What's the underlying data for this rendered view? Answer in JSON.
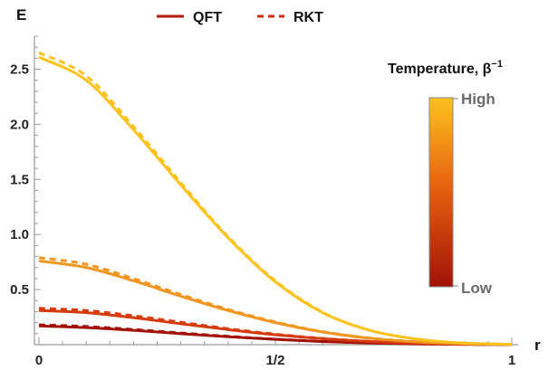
{
  "chart_data": {
    "type": "line",
    "xlabel": "r",
    "ylabel": "E",
    "xlim": [
      0,
      1
    ],
    "ylim": [
      0,
      2.8
    ],
    "x_ticks": [
      {
        "value": 0,
        "label": "0"
      },
      {
        "value": 0.5,
        "label": "1/2"
      },
      {
        "value": 1,
        "label": "1"
      }
    ],
    "y_ticks": [
      {
        "value": 0.5,
        "label": "0.5"
      },
      {
        "value": 1.0,
        "label": "1.0"
      },
      {
        "value": 1.5,
        "label": "1.5"
      },
      {
        "value": 2.0,
        "label": "2.0"
      },
      {
        "value": 2.5,
        "label": "2.5"
      }
    ],
    "legend": [
      {
        "label": "QFT",
        "style": "solid"
      },
      {
        "label": "RKT",
        "style": "dashed"
      }
    ],
    "colorbar": {
      "title": "Temperature, β",
      "title_sup": "−1",
      "high_label": "High",
      "low_label": "Low",
      "color_low": "#a31208",
      "color_mid": "#e8650f",
      "color_high": "#fcc21e"
    },
    "series": [
      {
        "name": "QFT",
        "temperature": "lowest",
        "style": "solid",
        "color": "#a31208",
        "x": [
          0,
          0.1,
          0.2,
          0.3,
          0.4,
          0.5,
          0.6,
          0.7,
          0.8,
          0.9,
          1.0
        ],
        "y": [
          0.17,
          0.155,
          0.13,
          0.1,
          0.072,
          0.048,
          0.028,
          0.015,
          0.007,
          0.003,
          0.001
        ]
      },
      {
        "name": "RKT",
        "temperature": "lowest",
        "style": "dashed",
        "color": "#a31208",
        "x": [
          0,
          0.1,
          0.2,
          0.3,
          0.4,
          0.5,
          0.6,
          0.7,
          0.8,
          0.9,
          1.0
        ],
        "y": [
          0.18,
          0.165,
          0.138,
          0.106,
          0.076,
          0.05,
          0.03,
          0.016,
          0.007,
          0.003,
          0.001
        ]
      },
      {
        "name": "QFT",
        "temperature": "low",
        "style": "solid",
        "color": "#d63b0e",
        "x": [
          0,
          0.1,
          0.2,
          0.3,
          0.4,
          0.5,
          0.6,
          0.7,
          0.8,
          0.9,
          1.0
        ],
        "y": [
          0.31,
          0.29,
          0.245,
          0.19,
          0.137,
          0.09,
          0.054,
          0.029,
          0.013,
          0.005,
          0.002
        ]
      },
      {
        "name": "RKT",
        "temperature": "low",
        "style": "dashed",
        "color": "#d63b0e",
        "x": [
          0,
          0.1,
          0.2,
          0.3,
          0.4,
          0.5,
          0.6,
          0.7,
          0.8,
          0.9,
          1.0
        ],
        "y": [
          0.33,
          0.31,
          0.262,
          0.203,
          0.145,
          0.095,
          0.057,
          0.03,
          0.014,
          0.005,
          0.002
        ]
      },
      {
        "name": "QFT",
        "temperature": "high",
        "style": "solid",
        "color": "#f29622",
        "x": [
          0,
          0.1,
          0.2,
          0.3,
          0.4,
          0.5,
          0.6,
          0.7,
          0.8,
          0.9,
          1.0
        ],
        "y": [
          0.76,
          0.7,
          0.58,
          0.44,
          0.31,
          0.2,
          0.115,
          0.058,
          0.025,
          0.009,
          0.003
        ]
      },
      {
        "name": "RKT",
        "temperature": "high",
        "style": "dashed",
        "color": "#f29622",
        "x": [
          0,
          0.1,
          0.2,
          0.3,
          0.4,
          0.5,
          0.6,
          0.7,
          0.8,
          0.9,
          1.0
        ],
        "y": [
          0.79,
          0.73,
          0.6,
          0.455,
          0.32,
          0.206,
          0.118,
          0.06,
          0.026,
          0.009,
          0.003
        ]
      },
      {
        "name": "QFT",
        "temperature": "highest",
        "style": "solid",
        "color": "#fcc21e",
        "x": [
          0,
          0.1,
          0.2,
          0.3,
          0.4,
          0.5,
          0.6,
          0.7,
          0.8,
          0.9,
          1.0
        ],
        "y": [
          2.61,
          2.4,
          1.95,
          1.45,
          0.97,
          0.57,
          0.29,
          0.13,
          0.05,
          0.014,
          0.003
        ]
      },
      {
        "name": "RKT",
        "temperature": "highest",
        "style": "dashed",
        "color": "#fcc21e",
        "x": [
          0,
          0.1,
          0.2,
          0.3,
          0.4,
          0.5,
          0.6,
          0.7,
          0.8,
          0.9,
          1.0
        ],
        "y": [
          2.65,
          2.44,
          1.98,
          1.47,
          0.98,
          0.58,
          0.295,
          0.13,
          0.05,
          0.014,
          0.003
        ]
      }
    ]
  }
}
